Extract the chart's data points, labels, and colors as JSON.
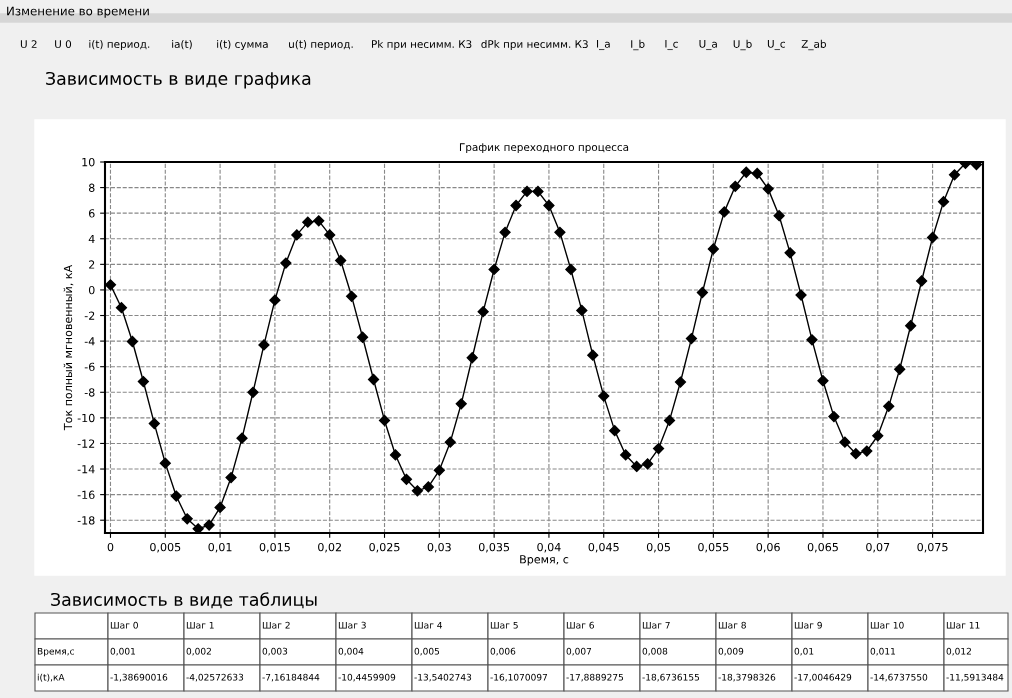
{
  "chart_data": {
    "type": "line",
    "title": "График переходного процесса",
    "xlabel": "Время, с",
    "ylabel": "Ток полный мгновенный, кА",
    "x": [
      0,
      0.001,
      0.002,
      0.003,
      0.004,
      0.005,
      0.006,
      0.007,
      0.008,
      0.009,
      0.01,
      0.011,
      0.012,
      0.013,
      0.014,
      0.015,
      0.016,
      0.017,
      0.018,
      0.019,
      0.02,
      0.021,
      0.022,
      0.023,
      0.024,
      0.025,
      0.026,
      0.027,
      0.028,
      0.029,
      0.03,
      0.031,
      0.032,
      0.033,
      0.034,
      0.035,
      0.036,
      0.037,
      0.038,
      0.039,
      0.04,
      0.041,
      0.042,
      0.043,
      0.044,
      0.045,
      0.046,
      0.047,
      0.048,
      0.049,
      0.05,
      0.051,
      0.052,
      0.053,
      0.054,
      0.055,
      0.056,
      0.057,
      0.058,
      0.059,
      0.06,
      0.061,
      0.062,
      0.063,
      0.064,
      0.065,
      0.066,
      0.067,
      0.068,
      0.069,
      0.07,
      0.071,
      0.072,
      0.073,
      0.074,
      0.075,
      0.076,
      0.077,
      0.078,
      0.079
    ],
    "series": [
      {
        "color": "#000000",
        "values": [
          0.4,
          -1.39,
          -4.03,
          -7.16,
          -10.45,
          -13.54,
          -16.11,
          -17.89,
          -18.67,
          -18.38,
          -17.0,
          -14.67,
          -11.59,
          -8.0,
          -4.3,
          -0.8,
          2.1,
          4.3,
          5.3,
          5.4,
          4.3,
          2.3,
          -0.5,
          -3.7,
          -7.0,
          -10.2,
          -12.9,
          -14.8,
          -15.7,
          -15.4,
          -14.1,
          -11.9,
          -8.9,
          -5.3,
          -1.7,
          1.6,
          4.5,
          6.6,
          7.7,
          7.7,
          6.6,
          4.5,
          1.6,
          -1.6,
          -5.1,
          -8.3,
          -11.0,
          -12.9,
          -13.8,
          -13.6,
          -12.4,
          -10.2,
          -7.2,
          -3.8,
          -0.2,
          3.2,
          6.1,
          8.1,
          9.2,
          9.1,
          7.9,
          5.8,
          2.9,
          -0.4,
          -3.9,
          -7.1,
          -9.9,
          -11.9,
          -12.8,
          -12.6,
          -11.4,
          -9.1,
          -6.2,
          -2.8,
          0.7,
          4.1,
          6.9,
          9.0,
          9.9,
          9.8
        ]
      }
    ],
    "xlim": [
      -0.0005,
      0.0796
    ],
    "ylim": [
      -19,
      10
    ],
    "xticks": [
      0,
      {
        "value": 0.005,
        "label": "0,005"
      },
      {
        "value": 0.01,
        "label": "0,01"
      },
      {
        "value": 0.015,
        "label": "0,015"
      },
      {
        "value": 0.02,
        "label": "0,02"
      },
      {
        "value": 0.025,
        "label": "0,025"
      },
      {
        "value": 0.03,
        "label": "0,03"
      },
      {
        "value": 0.035,
        "label": "0,035"
      },
      {
        "value": 0.04,
        "label": "0,04"
      },
      {
        "value": 0.045,
        "label": "0,045"
      },
      {
        "value": 0.05,
        "label": "0,05"
      },
      {
        "value": 0.055,
        "label": "0,055"
      },
      {
        "value": 0.06,
        "label": "0,06"
      },
      {
        "value": 0.065,
        "label": "0,065"
      },
      {
        "value": 0.07,
        "label": "0,07"
      },
      {
        "value": 0.075,
        "label": "0,075"
      }
    ],
    "yticks": [
      -18,
      -16,
      -14,
      -12,
      -10,
      -8,
      -6,
      -4,
      -2,
      0,
      2,
      4,
      6,
      8,
      10
    ],
    "grid": true,
    "marker": "diamond",
    "line_style": "solid",
    "annotations": [
      "Изменение во времени",
      "U 2",
      "U 0",
      "i(t) период.",
      "ia(t)",
      "i(t) сумма",
      "u(t) период.",
      "Pk при несимм. К3",
      "dPk при несимм. К3",
      "I_a",
      "I_b",
      "I_c",
      "U_a",
      "U_b",
      "U_c",
      "Z_ab",
      "Зависимость в виде графика",
      "Зависимость в виде таблицы",
      "Шаг 0",
      "Шаг 1",
      "Шаг 2",
      "Шаг 3",
      "Шаг 4",
      "Шаг 5",
      "Шаг 6",
      "Шаг 7",
      "Шаг 8",
      "Шаг 9",
      "Шаг 10",
      "Шаг 11",
      "Время,с",
      "0,001",
      "0,002",
      "0,003",
      "0,004",
      "0,005",
      "0,006",
      "0,007",
      "0,008",
      "0,009",
      "0,01",
      "0,011",
      "0,012",
      "i(t),кА",
      "-1,38690016",
      "-4,02572633",
      "-7,16184844",
      "-10,4459909",
      "-13,5402743",
      "-16,1070097",
      "-17,8889275",
      "-18,6736155",
      "-18,3798326",
      "-17,0046429",
      "-14,6737550",
      "-11,5913484"
    ]
  }
}
